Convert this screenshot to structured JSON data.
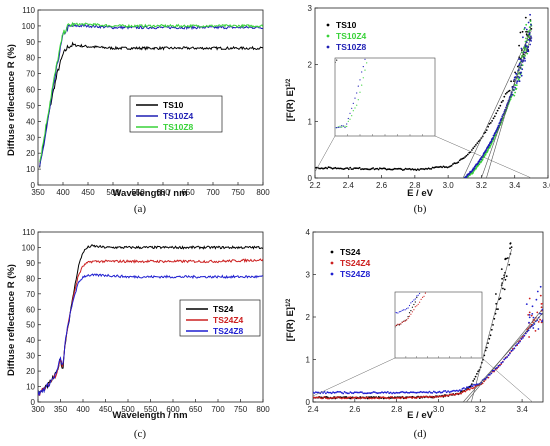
{
  "chart_data": [
    {
      "type": "line",
      "panel": "a",
      "caption": "(a)",
      "xlabel": "Wavelength / nm",
      "ylabel": "Diffuse reflectance R (%)",
      "xlim": [
        350,
        800
      ],
      "ylim": [
        0,
        110
      ],
      "xticks": [
        "350",
        "400",
        "450",
        "500",
        "550",
        "600",
        "650",
        "700",
        "750",
        "800"
      ],
      "yticks": [
        "0",
        "10",
        "20",
        "30",
        "40",
        "50",
        "60",
        "70",
        "80",
        "90",
        "100",
        "110"
      ],
      "grid": false,
      "legend_position": "bottom-right",
      "series": [
        {
          "name": "TS10",
          "color": "#000000",
          "x": [
            352,
            360,
            370,
            380,
            390,
            400,
            410,
            420,
            450,
            500,
            600,
            700,
            800
          ],
          "y": [
            10,
            24,
            42,
            58,
            72,
            82,
            87,
            88,
            87,
            86,
            86,
            86,
            86
          ]
        },
        {
          "name": "TS10Z4",
          "color": "#1f1fb4",
          "x": [
            352,
            360,
            370,
            380,
            390,
            400,
            410,
            420,
            450,
            500,
            600,
            700,
            800
          ],
          "y": [
            8,
            22,
            41,
            60,
            78,
            94,
            99,
            100,
            100,
            99,
            99,
            99,
            99
          ]
        },
        {
          "name": "TS10Z8",
          "color": "#39d239",
          "x": [
            352,
            360,
            370,
            380,
            390,
            400,
            410,
            420,
            450,
            500,
            600,
            700,
            800
          ],
          "y": [
            12,
            26,
            45,
            63,
            80,
            95,
            100,
            101,
            101,
            100,
            100,
            100,
            100
          ]
        }
      ]
    },
    {
      "type": "scatter",
      "panel": "b",
      "caption": "(b)",
      "xlabel": "E / eV",
      "ylabel": "[F(R) E]",
      "ylabel_sup": "1/2",
      "xlim": [
        2.2,
        3.6
      ],
      "ylim": [
        0,
        3
      ],
      "xticks": [
        "2.2",
        "2.4",
        "2.6",
        "2.8",
        "3.0",
        "3.2",
        "3.4",
        "3.6"
      ],
      "yticks": [
        "0",
        "1",
        "2",
        "3"
      ],
      "grid": false,
      "legend_position": "top-left",
      "inset": true,
      "series": [
        {
          "name": "TS10",
          "color": "#000000",
          "x": [
            2.2,
            2.4,
            2.6,
            2.8,
            3.0,
            3.1,
            3.2,
            3.3,
            3.4,
            3.5
          ],
          "y": [
            0.18,
            0.17,
            0.16,
            0.15,
            0.2,
            0.35,
            0.7,
            1.2,
            1.8,
            2.6
          ]
        },
        {
          "name": "TS10Z4",
          "color": "#39d239",
          "x": [
            3.1,
            3.15,
            3.2,
            3.25,
            3.3,
            3.35,
            3.4,
            3.45,
            3.5
          ],
          "y": [
            0,
            0.1,
            0.3,
            0.55,
            0.85,
            1.2,
            1.6,
            2.1,
            2.7
          ]
        },
        {
          "name": "TS10Z8",
          "color": "#1f1fb4",
          "x": [
            3.1,
            3.15,
            3.2,
            3.25,
            3.3,
            3.35,
            3.4,
            3.45,
            3.5
          ],
          "y": [
            0,
            0.15,
            0.35,
            0.6,
            0.9,
            1.25,
            1.65,
            2.1,
            2.5
          ]
        }
      ]
    },
    {
      "type": "line",
      "panel": "c",
      "caption": "(c)",
      "xlabel": "Wavelength / nm",
      "ylabel": "Diffuse reflectance R (%)",
      "xlim": [
        300,
        800
      ],
      "ylim": [
        0,
        110
      ],
      "xticks": [
        "300",
        "350",
        "400",
        "450",
        "500",
        "550",
        "600",
        "650",
        "700",
        "750",
        "800"
      ],
      "yticks": [
        "0",
        "10",
        "20",
        "30",
        "40",
        "50",
        "60",
        "70",
        "80",
        "90",
        "100",
        "110"
      ],
      "grid": false,
      "legend_position": "bottom-right",
      "series": [
        {
          "name": "TS24",
          "color": "#000000",
          "x": [
            300,
            320,
            340,
            350,
            355,
            360,
            370,
            380,
            390,
            400,
            410,
            420,
            450,
            500,
            600,
            700,
            800
          ],
          "y": [
            5,
            10,
            18,
            28,
            20,
            38,
            55,
            72,
            88,
            97,
            100,
            101,
            100,
            100,
            100,
            100,
            100
          ]
        },
        {
          "name": "TS24Z4",
          "color": "#cc2020",
          "x": [
            300,
            320,
            340,
            350,
            355,
            360,
            370,
            380,
            390,
            400,
            410,
            420,
            450,
            500,
            600,
            700,
            800
          ],
          "y": [
            5,
            10,
            18,
            28,
            22,
            38,
            55,
            70,
            82,
            88,
            90,
            91,
            91,
            91,
            91,
            91,
            92
          ]
        },
        {
          "name": "TS24Z8",
          "color": "#1f1fd0",
          "x": [
            300,
            320,
            340,
            350,
            355,
            360,
            370,
            380,
            390,
            400,
            410,
            420,
            450,
            500,
            600,
            700,
            800
          ],
          "y": [
            5,
            10,
            18,
            28,
            22,
            38,
            55,
            68,
            77,
            81,
            82,
            82,
            82,
            81,
            81,
            81,
            81
          ]
        }
      ]
    },
    {
      "type": "scatter",
      "panel": "d",
      "caption": "(d)",
      "xlabel": "E / eV",
      "ylabel": "[F(R) E]",
      "ylabel_sup": "1/2",
      "xlim": [
        2.4,
        3.5
      ],
      "ylim": [
        0,
        4
      ],
      "xticks": [
        "2.4",
        "2.6",
        "2.8",
        "3.0",
        "3.2",
        "3.4"
      ],
      "yticks": [
        "0",
        "1",
        "2",
        "3",
        "4"
      ],
      "grid": false,
      "legend_position": "top-left",
      "inset": true,
      "series": [
        {
          "name": "TS24",
          "color": "#000000",
          "x": [
            2.4,
            2.6,
            2.8,
            3.0,
            3.1,
            3.15,
            3.2,
            3.25,
            3.3,
            3.35
          ],
          "y": [
            0.1,
            0.1,
            0.1,
            0.12,
            0.2,
            0.35,
            0.8,
            1.6,
            2.6,
            3.6
          ]
        },
        {
          "name": "TS24Z4",
          "color": "#cc2020",
          "x": [
            2.4,
            2.6,
            2.8,
            3.0,
            3.1,
            3.2,
            3.3,
            3.4,
            3.5
          ],
          "y": [
            0.1,
            0.1,
            0.1,
            0.12,
            0.2,
            0.4,
            0.9,
            1.5,
            2.2
          ]
        },
        {
          "name": "TS24Z8",
          "color": "#1f1fd0",
          "x": [
            2.4,
            2.6,
            2.8,
            3.0,
            3.1,
            3.2,
            3.3,
            3.4,
            3.5
          ],
          "y": [
            0.22,
            0.22,
            0.22,
            0.23,
            0.27,
            0.45,
            0.9,
            1.5,
            2.1
          ]
        }
      ]
    }
  ]
}
